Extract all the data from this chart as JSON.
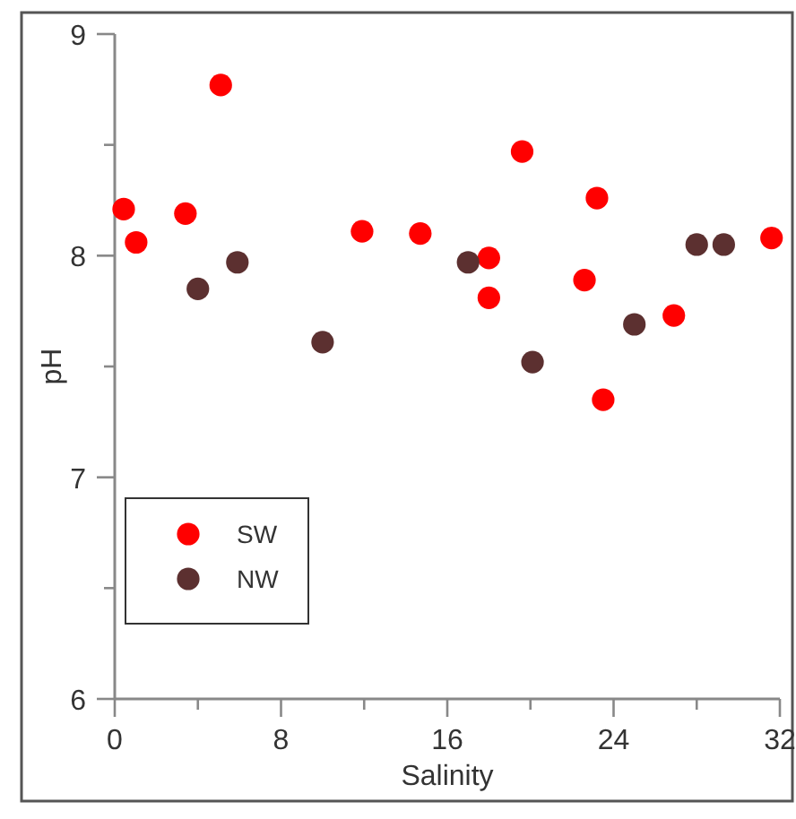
{
  "chart_data": {
    "type": "scatter",
    "xlabel": "Salinity",
    "ylabel": "pH",
    "xlim": [
      0,
      32
    ],
    "ylim": [
      6,
      9
    ],
    "xticks": [
      0,
      {
        "value": 4,
        "label": null
      },
      8,
      {
        "value": 12,
        "label": null
      },
      16,
      {
        "value": 20,
        "label": null
      },
      24,
      {
        "value": 28,
        "label": null
      },
      32
    ],
    "yticks": [
      6,
      {
        "value": 6.5,
        "label": null
      },
      7,
      {
        "value": 7.5,
        "label": null
      },
      8,
      {
        "value": 8.5,
        "label": null
      },
      9
    ],
    "legend": "bottom left",
    "marker": "circle",
    "grid": false,
    "series": [
      {
        "name": "SW",
        "color": "#ff0000",
        "x": [
          0.43,
          1.03,
          3.4,
          5.1,
          11.9,
          14.7,
          18.0,
          18.0,
          19.6,
          22.6,
          23.2,
          23.5,
          26.9,
          31.6
        ],
        "values": [
          8.21,
          8.06,
          8.19,
          8.77,
          8.11,
          8.1,
          7.99,
          7.81,
          8.47,
          7.89,
          8.26,
          7.35,
          7.73,
          8.08
        ]
      },
      {
        "name": "NW",
        "color": "#5c3030",
        "x": [
          4.0,
          5.9,
          10.0,
          17.0,
          20.1,
          25.0,
          28.0,
          29.3
        ],
        "values": [
          7.85,
          7.97,
          7.61,
          7.97,
          7.52,
          7.69,
          8.05,
          8.05
        ]
      }
    ]
  }
}
